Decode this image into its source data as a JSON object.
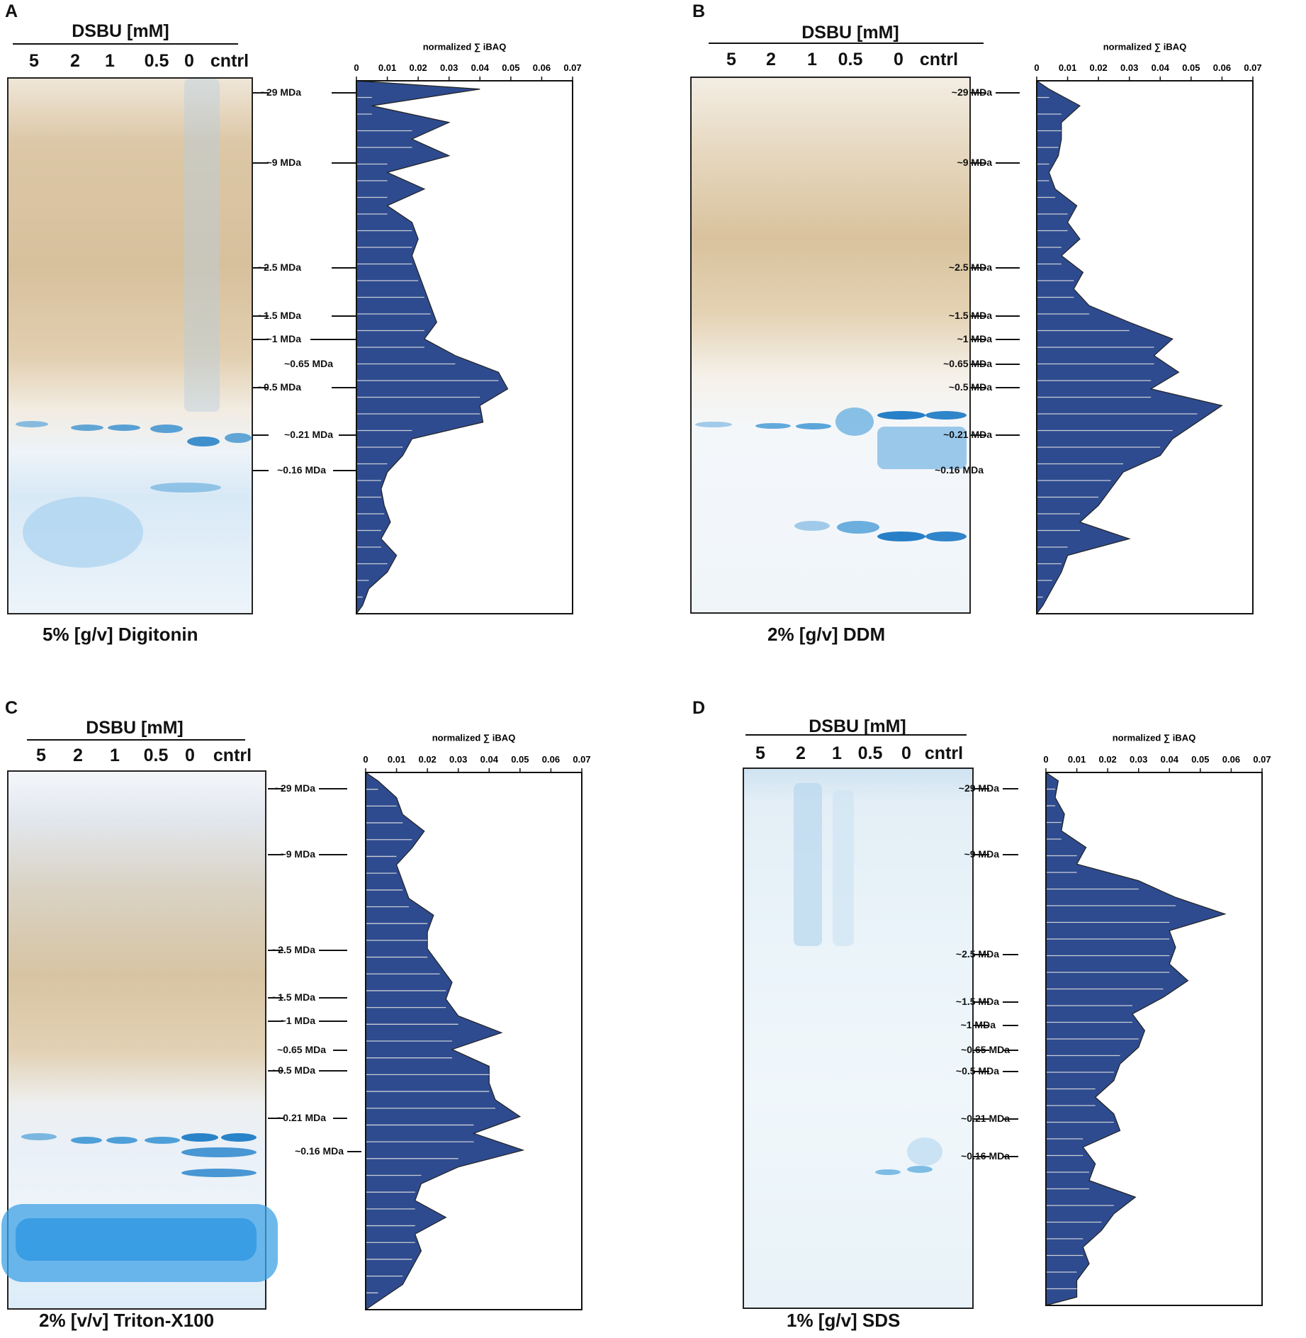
{
  "panels": [
    {
      "letter": "A",
      "dsbu_title": "DSBU [mM]",
      "lanes": [
        "5",
        "2",
        "1",
        "0.5",
        "0",
        "cntrl"
      ],
      "caption": "5% [g/v] Digitonin",
      "mw_markers": [
        "~29 MDa",
        "~9 MDa",
        "~2.5 MDa",
        "~1.5 MDa",
        "~1 MDa",
        "~0.65 MDa",
        "~0.5 MDa",
        "~0.21 MDa",
        "~0.16 MDa"
      ],
      "gel_style": "native"
    },
    {
      "letter": "B",
      "dsbu_title": "DSBU [mM]",
      "lanes": [
        "5",
        "2",
        "1",
        "0.5",
        "0",
        "cntrl"
      ],
      "caption": "2% [g/v] DDM",
      "mw_markers": [
        "~29 MDa",
        "~9 MDa",
        "~2.5 MDa",
        "~1.5 MDa",
        "~1 MDa",
        "~0.65 MDa",
        "~0.5 MDa",
        "~0.21 MDa",
        "~0.16 MDa"
      ],
      "gel_style": "native"
    },
    {
      "letter": "C",
      "dsbu_title": "DSBU [mM]",
      "lanes": [
        "5",
        "2",
        "1",
        "0.5",
        "0",
        "cntrl"
      ],
      "caption": "2% [v/v] Triton-X100",
      "mw_markers": [
        "~29 MDa",
        "~9 MDa",
        "~2.5 MDa",
        "~1.5 MDa",
        "~1 MDa",
        "~0.65 MDa",
        "~0.5 MDa",
        "~0.21 MDa",
        "~0.16 MDa"
      ],
      "gel_style": "native"
    },
    {
      "letter": "D",
      "dsbu_title": "DSBU [mM]",
      "lanes": [
        "5",
        "2",
        "1",
        "0.5",
        "0",
        "cntrl"
      ],
      "caption": "1% [g/v] SDS",
      "mw_markers": [
        "~29 MDa",
        "~9 MDa",
        "~2.5 MDa",
        "~1.5 MDa",
        "~1 MDa",
        "~0.65 MDa",
        "~0.5 MDa",
        "~0.21 MDa",
        "~0.16 MDa"
      ],
      "gel_style": "sds"
    }
  ],
  "colors": {
    "bar_fill": "#2e4b8f",
    "bar_stripe": "#c9cdd6",
    "gel_brown": "#d6c3a3",
    "gel_blue": "#3a9ad9"
  },
  "chart_data": [
    {
      "type": "area",
      "title": "normalized ∑ iBAQ",
      "orientation": "horizontal-profile",
      "xlim": [
        0,
        0.07
      ],
      "xticks": [
        "0",
        "0.01",
        "0.02",
        "0.03",
        "0.04",
        "0.05",
        "0.06",
        "0.07"
      ],
      "values": [
        0.04,
        0.005,
        0.03,
        0.018,
        0.03,
        0.01,
        0.022,
        0.01,
        0.018,
        0.02,
        0.018,
        0.02,
        0.022,
        0.024,
        0.026,
        0.022,
        0.032,
        0.046,
        0.049,
        0.04,
        0.041,
        0.018,
        0.015,
        0.01,
        0.008,
        0.009,
        0.011,
        0.008,
        0.013,
        0.01,
        0.004,
        0.002
      ]
    },
    {
      "type": "area",
      "title": "normalized ∑ iBAQ",
      "orientation": "horizontal-profile",
      "xlim": [
        0,
        0.07
      ],
      "xticks": [
        "0",
        "0.01",
        "0.02",
        "0.03",
        "0.04",
        "0.05",
        "0.06",
        "0.07"
      ],
      "values": [
        0.004,
        0.014,
        0.008,
        0.008,
        0.007,
        0.004,
        0.006,
        0.013,
        0.01,
        0.014,
        0.008,
        0.015,
        0.012,
        0.017,
        0.03,
        0.044,
        0.038,
        0.046,
        0.037,
        0.06,
        0.052,
        0.044,
        0.04,
        0.028,
        0.024,
        0.02,
        0.014,
        0.03,
        0.01,
        0.008,
        0.005,
        0.002
      ]
    },
    {
      "type": "area",
      "title": "normalized ∑ iBAQ",
      "orientation": "horizontal-profile",
      "xlim": [
        0,
        0.07
      ],
      "xticks": [
        "0",
        "0.01",
        "0.02",
        "0.03",
        "0.04",
        "0.05",
        "0.06",
        "0.07"
      ],
      "values": [
        0.004,
        0.01,
        0.012,
        0.019,
        0.015,
        0.01,
        0.012,
        0.014,
        0.022,
        0.02,
        0.02,
        0.024,
        0.028,
        0.026,
        0.03,
        0.044,
        0.028,
        0.04,
        0.04,
        0.042,
        0.05,
        0.035,
        0.051,
        0.03,
        0.018,
        0.016,
        0.026,
        0.016,
        0.018,
        0.015,
        0.012,
        0.004
      ]
    },
    {
      "type": "area",
      "title": "normalized ∑ iBAQ",
      "orientation": "horizontal-profile",
      "xlim": [
        0,
        0.07
      ],
      "xticks": [
        "0",
        "0.01",
        "0.02",
        "0.03",
        "0.04",
        "0.05",
        "0.06",
        "0.07"
      ],
      "values": [
        0.004,
        0.003,
        0.006,
        0.005,
        0.013,
        0.01,
        0.03,
        0.042,
        0.058,
        0.04,
        0.042,
        0.04,
        0.046,
        0.038,
        0.028,
        0.032,
        0.03,
        0.024,
        0.022,
        0.016,
        0.022,
        0.024,
        0.012,
        0.016,
        0.014,
        0.029,
        0.022,
        0.018,
        0.012,
        0.014,
        0.01,
        0.01
      ]
    }
  ]
}
